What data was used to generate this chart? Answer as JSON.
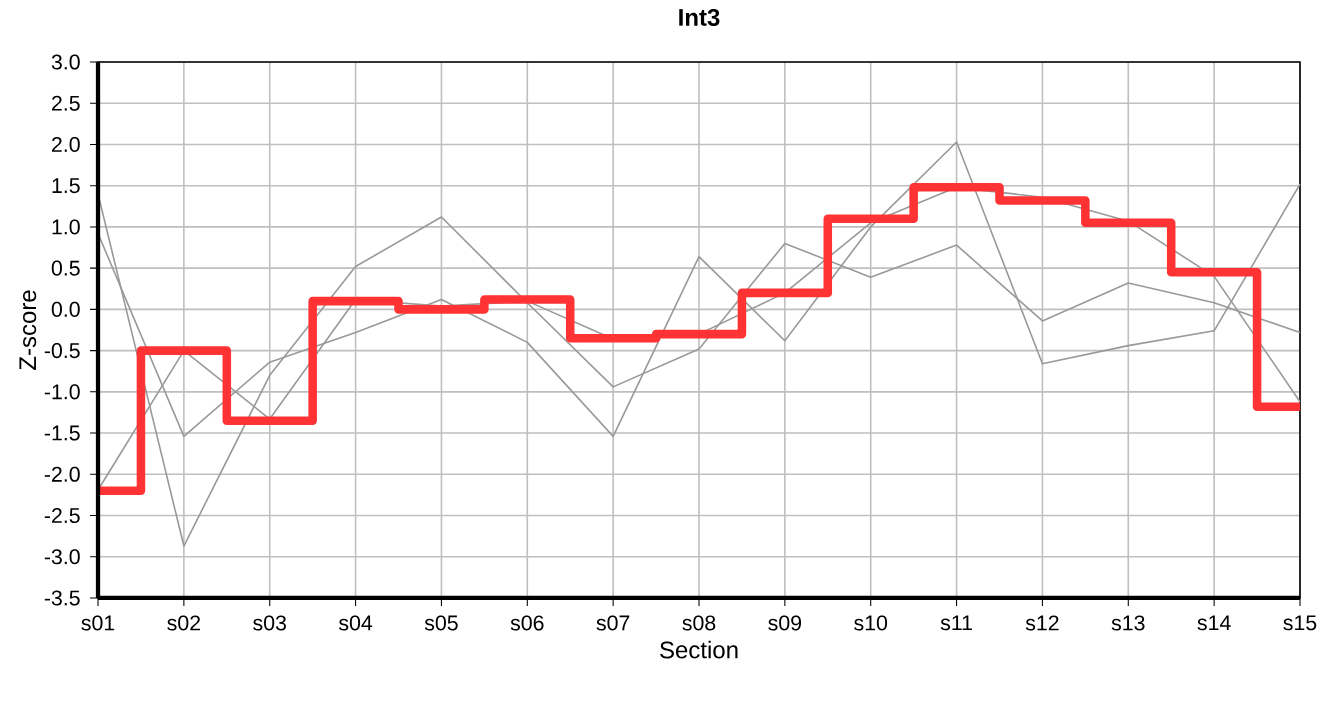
{
  "chart_data": {
    "type": "line",
    "title": "Int3",
    "xlabel": "Section",
    "ylabel": "Z-score",
    "categories": [
      "s01",
      "s02",
      "s03",
      "s04",
      "s05",
      "s06",
      "s07",
      "s08",
      "s09",
      "s10",
      "s11",
      "s12",
      "s13",
      "s14",
      "s15"
    ],
    "series": [
      {
        "color": "#999999",
        "values": [
          0.92,
          -1.54,
          -0.64,
          -0.28,
          0.12,
          -0.4,
          -1.54,
          0.64,
          -0.38,
          1.0,
          2.03,
          -0.66,
          -0.44,
          -0.26,
          1.52
        ]
      },
      {
        "color": "#999999",
        "values": [
          1.4,
          -2.87,
          -0.8,
          0.52,
          1.12,
          0.08,
          -0.94,
          -0.48,
          0.8,
          0.39,
          0.78,
          -0.14,
          0.32,
          0.08,
          -0.28
        ]
      },
      {
        "color": "#999999",
        "values": [
          -2.19,
          -0.5,
          -1.33,
          0.12,
          0.04,
          0.1,
          -0.36,
          -0.3,
          0.2,
          1.05,
          1.48,
          1.36,
          1.07,
          0.4,
          -1.12
        ]
      },
      {
        "type": "step",
        "color": "#ff3333",
        "values": [
          -2.2,
          -0.5,
          -1.35,
          0.1,
          0.0,
          0.12,
          -0.35,
          -0.3,
          0.2,
          1.1,
          1.48,
          1.32,
          1.05,
          0.45,
          -1.18
        ]
      }
    ],
    "ylim": [
      -3.5,
      3
    ],
    "yticks": [
      {
        "value": 3,
        "label": "3.0"
      },
      2.5,
      {
        "value": 2,
        "label": "2.0"
      },
      1.5,
      {
        "value": 1,
        "label": "1.0"
      },
      0.5,
      {
        "value": 0,
        "label": "0.0"
      },
      -0.5,
      {
        "value": -1,
        "label": "-1.0"
      },
      -1.5,
      {
        "value": -2,
        "label": "-2.0"
      },
      -2.5,
      {
        "value": -3,
        "label": "-3.0"
      },
      -3.5
    ],
    "grid": true,
    "marker": "none",
    "line_style": "solid"
  }
}
